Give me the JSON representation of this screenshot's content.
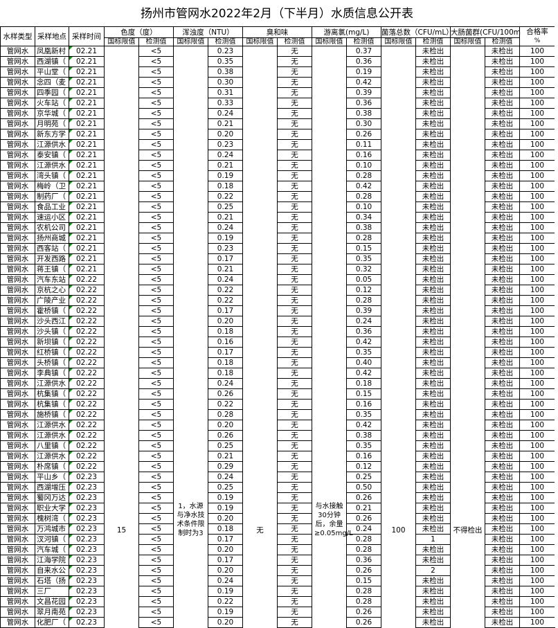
{
  "title": "扬州市管网水2022年2月（下半月）水质信息公开表",
  "headers": {
    "type": "水样类型",
    "site": "采样地点",
    "time": "采样时间",
    "color": "色度（度）",
    "turbidity": "浑浊度（NTU）",
    "odor": "臭和味",
    "chlorine": "游离氯(mg/L)",
    "colony": "菌落总数（CFU/mL）",
    "coliform": "大肠菌群(CFU/100m",
    "rate": "合格率",
    "rate_unit": "%",
    "limit": "国标限值",
    "measured": "检测值"
  },
  "limits": {
    "color": "15",
    "turbidity": "1，水源与净水技术条件限制时为3",
    "odor": "无",
    "chlorine": "与水接触30分钟后，余量≥0.05mg/L",
    "colony": "100",
    "coliform": "不得检出"
  },
  "rows": [
    [
      "管网水",
      "凤凰新村",
      "02.21",
      "<5",
      "0.23",
      "无",
      "0.37",
      "未检出",
      "未检出",
      "100"
    ],
    [
      "管网水",
      "西湖镇（",
      "02.21",
      "<5",
      "0.35",
      "无",
      "0.36",
      "未检出",
      "未检出",
      "100"
    ],
    [
      "管网水",
      "平山堂（",
      "02.21",
      "<5",
      "0.38",
      "无",
      "0.19",
      "未检出",
      "未检出",
      "100"
    ],
    [
      "管网水",
      "念四（麦",
      "02.21",
      "<5",
      "0.30",
      "无",
      "0.42",
      "未检出",
      "未检出",
      "100"
    ],
    [
      "管网水",
      "四季园（",
      "02.21",
      "<5",
      "0.31",
      "无",
      "0.39",
      "未检出",
      "未检出",
      "100"
    ],
    [
      "管网水",
      "火车站（",
      "02.21",
      "<5",
      "0.33",
      "无",
      "0.36",
      "未检出",
      "未检出",
      "100"
    ],
    [
      "管网水",
      "京华城（",
      "02.21",
      "<5",
      "0.24",
      "无",
      "0.38",
      "未检出",
      "未检出",
      "100"
    ],
    [
      "管网水",
      "月明苑（",
      "02.21",
      "<5",
      "0.21",
      "无",
      "0.30",
      "未检出",
      "未检出",
      "100"
    ],
    [
      "管网水",
      "新东方学",
      "02.21",
      "<5",
      "0.20",
      "无",
      "0.26",
      "未检出",
      "未检出",
      "100"
    ],
    [
      "管网水",
      "江源供水",
      "02.21",
      "<5",
      "0.23",
      "无",
      "0.11",
      "未检出",
      "未检出",
      "100"
    ],
    [
      "管网水",
      "泰安镇（",
      "02.21",
      "<5",
      "0.24",
      "无",
      "0.16",
      "未检出",
      "未检出",
      "100"
    ],
    [
      "管网水",
      "江源供水",
      "02.21",
      "<5",
      "0.21",
      "无",
      "0.10",
      "未检出",
      "未检出",
      "100"
    ],
    [
      "管网水",
      "湾头镇（",
      "02.21",
      "<5",
      "0.19",
      "无",
      "0.28",
      "未检出",
      "未检出",
      "100"
    ],
    [
      "管网水",
      "梅岭（卫",
      "02.21",
      "<5",
      "0.18",
      "无",
      "0.42",
      "未检出",
      "未检出",
      "100"
    ],
    [
      "管网水",
      "制药厂（",
      "02.21",
      "<5",
      "0.22",
      "无",
      "0.28",
      "未检出",
      "未检出",
      "100"
    ],
    [
      "管网水",
      "食品工业",
      "02.21",
      "<5",
      "0.25",
      "无",
      "0.10",
      "未检出",
      "未检出",
      "100"
    ],
    [
      "管网水",
      "速运小区",
      "02.21",
      "<5",
      "0.21",
      "无",
      "0.34",
      "未检出",
      "未检出",
      "100"
    ],
    [
      "管网水",
      "农机公司",
      "02.21",
      "<5",
      "0.24",
      "无",
      "0.38",
      "未检出",
      "未检出",
      "100"
    ],
    [
      "管网水",
      "扬州商城",
      "02.21",
      "<5",
      "0.19",
      "无",
      "0.28",
      "未检出",
      "未检出",
      "100"
    ],
    [
      "管网水",
      "西客站（",
      "02.21",
      "<5",
      "0.23",
      "无",
      "0.15",
      "未检出",
      "未检出",
      "100"
    ],
    [
      "管网水",
      "开发西路",
      "02.21",
      "<5",
      "0.17",
      "无",
      "0.35",
      "未检出",
      "未检出",
      "100"
    ],
    [
      "管网水",
      "蒋王镇（",
      "02.21",
      "<5",
      "0.21",
      "无",
      "0.32",
      "未检出",
      "未检出",
      "100"
    ],
    [
      "管网水",
      "汽车东站",
      "02.22",
      "<5",
      "0.24",
      "无",
      "0.05",
      "未检出",
      "未检出",
      "100"
    ],
    [
      "管网水",
      "京杭之心",
      "02.22",
      "<5",
      "0.22",
      "无",
      "0.12",
      "未检出",
      "未检出",
      "100"
    ],
    [
      "管网水",
      "广陵产业",
      "02.22",
      "<5",
      "0.22",
      "无",
      "0.28",
      "未检出",
      "未检出",
      "100"
    ],
    [
      "管网水",
      "霍桥镇（",
      "02.22",
      "<5",
      "0.17",
      "无",
      "0.39",
      "未检出",
      "未检出",
      "100"
    ],
    [
      "管网水",
      "沙头西江",
      "02.22",
      "<5",
      "0.20",
      "无",
      "0.24",
      "未检出",
      "未检出",
      "100"
    ],
    [
      "管网水",
      "沙头镇（",
      "02.22",
      "<5",
      "0.18",
      "无",
      "0.36",
      "未检出",
      "未检出",
      "100"
    ],
    [
      "管网水",
      "新坝镇（",
      "02.22",
      "<5",
      "0.16",
      "无",
      "0.42",
      "未检出",
      "未检出",
      "100"
    ],
    [
      "管网水",
      "红桥镇（",
      "02.22",
      "<5",
      "0.17",
      "无",
      "0.35",
      "未检出",
      "未检出",
      "100"
    ],
    [
      "管网水",
      "头桥镇（",
      "02.22",
      "<5",
      "0.18",
      "无",
      "0.40",
      "未检出",
      "未检出",
      "100"
    ],
    [
      "管网水",
      "李典镇（",
      "02.22",
      "<5",
      "0.18",
      "无",
      "0.42",
      "未检出",
      "未检出",
      "100"
    ],
    [
      "管网水",
      "江源供水",
      "02.22",
      "<5",
      "0.24",
      "无",
      "0.18",
      "未检出",
      "未检出",
      "100"
    ],
    [
      "管网水",
      "杭集镇（",
      "02.22",
      "<5",
      "0.26",
      "无",
      "0.15",
      "未检出",
      "未检出",
      "100"
    ],
    [
      "管网水",
      "杭集镇（",
      "02.22",
      "<5",
      "0.22",
      "无",
      "0.16",
      "未检出",
      "未检出",
      "100"
    ],
    [
      "管网水",
      "施桥镇（",
      "02.22",
      "<5",
      "0.28",
      "无",
      "0.35",
      "未检出",
      "未检出",
      "100"
    ],
    [
      "管网水",
      "江源供水",
      "02.22",
      "<5",
      "0.20",
      "无",
      "0.42",
      "未检出",
      "未检出",
      "100"
    ],
    [
      "管网水",
      "江源供水",
      "02.22",
      "<5",
      "0.26",
      "无",
      "0.38",
      "未检出",
      "未检出",
      "100"
    ],
    [
      "管网水",
      "八里镇（",
      "02.22",
      "<5",
      "0.25",
      "无",
      "0.35",
      "未检出",
      "未检出",
      "100"
    ],
    [
      "管网水",
      "江源供水",
      "02.22",
      "<5",
      "0.21",
      "无",
      "0.16",
      "未检出",
      "未检出",
      "100"
    ],
    [
      "管网水",
      "朴席镇（",
      "02.22",
      "<5",
      "0.29",
      "无",
      "0.12",
      "未检出",
      "未检出",
      "100"
    ],
    [
      "管网水",
      "平山乡（",
      "02.23",
      "<5",
      "0.24",
      "无",
      "0.25",
      "未检出",
      "未检出",
      "100"
    ],
    [
      "管网水",
      "西湖增压",
      "02.23",
      "<5",
      "0.25",
      "无",
      "0.50",
      "未检出",
      "未检出",
      "100"
    ],
    [
      "管网水",
      "蜀冈万达",
      "02.23",
      "<5",
      "0.19",
      "无",
      "0.26",
      "未检出",
      "未检出",
      "100"
    ],
    [
      "管网水",
      "职业大学",
      "02.23",
      "<5",
      "0.19",
      "无",
      "0.21",
      "未检出",
      "未检出",
      "100"
    ],
    [
      "管网水",
      "槐树湾（",
      "02.23",
      "<5",
      "0.20",
      "无",
      "0.26",
      "未检出",
      "未检出",
      "100"
    ],
    [
      "管网水",
      "万鸿城市",
      "02.23",
      "<5",
      "0.18",
      "无",
      "0.24",
      "未检出",
      "未检出",
      "100"
    ],
    [
      "管网水",
      "汊河镇（",
      "02.23",
      "<5",
      "0.17",
      "无",
      "0.28",
      "1",
      "未检出",
      "100"
    ],
    [
      "管网水",
      "汽车城（",
      "02.23",
      "<5",
      "0.20",
      "无",
      "0.28",
      "未检出",
      "未检出",
      "100"
    ],
    [
      "管网水",
      "江海学院",
      "02.23",
      "<5",
      "0.17",
      "无",
      "0.36",
      "未检出",
      "未检出",
      "100"
    ],
    [
      "管网水",
      "自来水公",
      "02.23",
      "<5",
      "0.20",
      "无",
      "0.26",
      "2",
      "未检出",
      "100"
    ],
    [
      "管网水",
      "石塔（扬",
      "02.23",
      "<5",
      "0.24",
      "无",
      "0.15",
      "未检出",
      "未检出",
      "100"
    ],
    [
      "管网水",
      "三厂",
      "02.23",
      "<5",
      "0.19",
      "无",
      "0.28",
      "未检出",
      "未检出",
      "100"
    ],
    [
      "管网水",
      "文昌花园",
      "02.23",
      "<5",
      "0.22",
      "无",
      "0.28",
      "未检出",
      "未检出",
      "100"
    ],
    [
      "管网水",
      "翠月南苑",
      "02.23",
      "<5",
      "0.19",
      "无",
      "0.26",
      "未检出",
      "未检出",
      "100"
    ],
    [
      "管网水",
      "化肥厂（",
      "02.23",
      "<5",
      "0.20",
      "无",
      "0.26",
      "未检出",
      "未检出",
      "100"
    ]
  ]
}
